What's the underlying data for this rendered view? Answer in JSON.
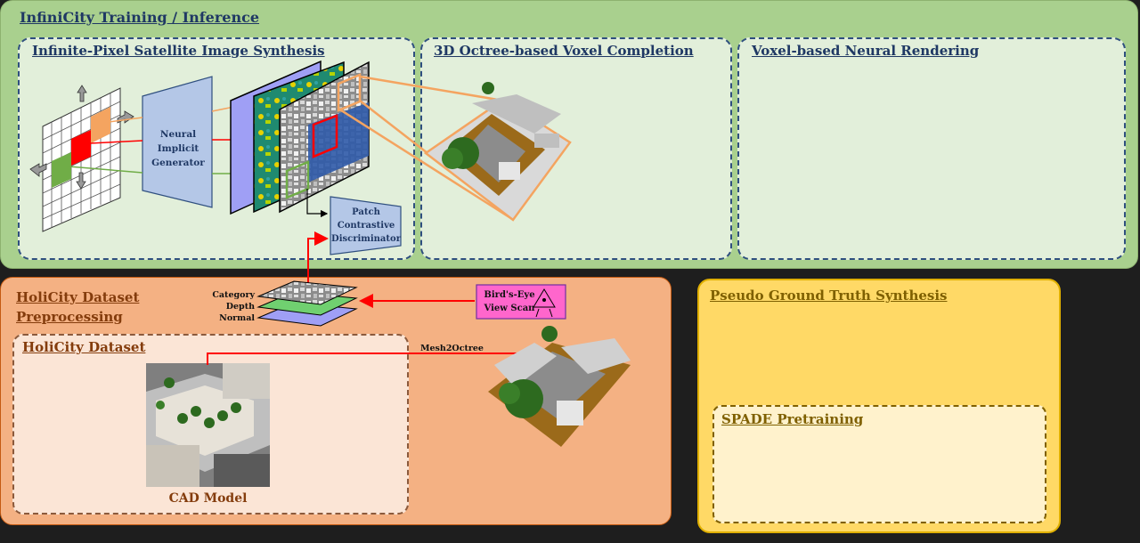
{
  "panels": {
    "training": "InfiniCity Training / Inference",
    "satellite": "Infinite-Pixel Satellite Image Synthesis",
    "octree": "3D Octree-based Voxel Completion",
    "rendering": "Voxel-based Neural Rendering",
    "preprocessing": "HoliCity Dataset Preprocessing",
    "dataset": "HoliCity Dataset",
    "pseudo_gt": "Pseudo Ground Truth Synthesis",
    "spade": "SPADE Pretraining"
  },
  "nodes": {
    "generator": [
      "Neural",
      "Implicit",
      "Generator"
    ],
    "discriminator": [
      "Patch",
      "Contrastive",
      "Discriminator"
    ],
    "bev_scan": [
      "Bird's-Eye",
      "View Scan"
    ],
    "cad_model": "CAD Model",
    "mesh2octree": "Mesh2Octree",
    "layer_labels": [
      "Category",
      "Depth",
      "Normal"
    ]
  },
  "colors": {
    "training_bg": "#a9d08e",
    "subbox_bg": "#e2efda",
    "preprocessing_bg": "#f4b183",
    "pseudo_bg": "#ffd966",
    "arrow_red": "#ff0000",
    "frustum_orange": "#f4a460"
  }
}
